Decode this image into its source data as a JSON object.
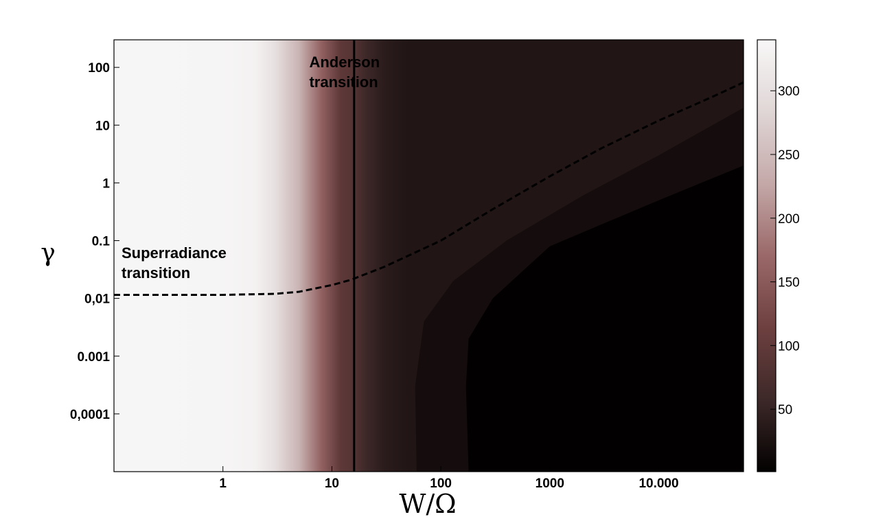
{
  "chart_data": {
    "type": "heatmap",
    "xlabel": "W/Ω",
    "ylabel": "γ",
    "x_scale": "log",
    "y_scale": "log",
    "xlim": [
      0.1,
      60000
    ],
    "ylim": [
      1e-05,
      300
    ],
    "x_ticks": [
      {
        "value": 1,
        "label": "1"
      },
      {
        "value": 10,
        "label": "10"
      },
      {
        "value": 100,
        "label": "100"
      },
      {
        "value": 1000,
        "label": "1000"
      },
      {
        "value": 10000,
        "label": "10.000"
      }
    ],
    "y_ticks": [
      {
        "value": 100,
        "label": "100"
      },
      {
        "value": 10,
        "label": "10"
      },
      {
        "value": 1,
        "label": "1"
      },
      {
        "value": 0.1,
        "label": "0.1"
      },
      {
        "value": 0.01,
        "label": "0,01"
      },
      {
        "value": 0.001,
        "label": "0.001"
      },
      {
        "value": 0.0001,
        "label": "0,0001"
      }
    ],
    "colorbar": {
      "range": [
        1,
        340
      ],
      "ticks": [
        {
          "value": 300,
          "label": "300"
        },
        {
          "value": 250,
          "label": "250"
        },
        {
          "value": 200,
          "label": "200"
        },
        {
          "value": 150,
          "label": "150"
        },
        {
          "value": 100,
          "label": "100"
        },
        {
          "value": 50,
          "label": "50"
        }
      ],
      "colors": [
        "#030101",
        "#3d2828",
        "#6e4040",
        "#9a6868",
        "#c4a8a8",
        "#e0d6d6",
        "#f8f7f7"
      ]
    },
    "columns_W": [
      0.1,
      1,
      2,
      3,
      5,
      8,
      12,
      16,
      20,
      30,
      50,
      100,
      200,
      500,
      1000,
      10000,
      60000
    ],
    "columns_value": [
      338,
      336,
      330,
      300,
      240,
      160,
      95,
      85,
      60,
      40,
      30,
      30,
      30,
      30,
      30,
      30,
      30
    ],
    "dark_region_boundary": [
      {
        "W": 60,
        "gamma": 1e-05
      },
      {
        "W": 58,
        "gamma": 0.0003
      },
      {
        "W": 70,
        "gamma": 0.004
      },
      {
        "W": 130,
        "gamma": 0.02
      },
      {
        "W": 400,
        "gamma": 0.1
      },
      {
        "W": 2000,
        "gamma": 0.6
      },
      {
        "W": 10000,
        "gamma": 3
      },
      {
        "W": 60000,
        "gamma": 20
      }
    ],
    "darkest_region_boundary": [
      {
        "W": 180,
        "gamma": 1e-05
      },
      {
        "W": 170,
        "gamma": 0.0003
      },
      {
        "W": 180,
        "gamma": 0.002
      },
      {
        "W": 300,
        "gamma": 0.01
      },
      {
        "W": 1000,
        "gamma": 0.08
      },
      {
        "W": 10000,
        "gamma": 0.5
      },
      {
        "W": 60000,
        "gamma": 2
      }
    ],
    "series": [
      {
        "style": "dashed",
        "points": [
          {
            "W": 0.1,
            "gamma": 0.0115
          },
          {
            "W": 1,
            "gamma": 0.0115
          },
          {
            "W": 3,
            "gamma": 0.012
          },
          {
            "W": 5,
            "gamma": 0.013
          },
          {
            "W": 10,
            "gamma": 0.017
          },
          {
            "W": 15,
            "gamma": 0.021
          },
          {
            "W": 30,
            "gamma": 0.035
          },
          {
            "W": 100,
            "gamma": 0.1
          },
          {
            "W": 300,
            "gamma": 0.35
          },
          {
            "W": 1000,
            "gamma": 1.3
          },
          {
            "W": 3000,
            "gamma": 4
          },
          {
            "W": 10000,
            "gamma": 12
          },
          {
            "W": 30000,
            "gamma": 30
          },
          {
            "W": 60000,
            "gamma": 55
          }
        ]
      },
      {
        "style": "solid",
        "vertical_at_W": 16
      }
    ],
    "annotations": [
      {
        "lines": [
          "Anderson",
          "transition"
        ],
        "W": 6.2,
        "gamma": 100
      },
      {
        "lines": [
          "Superradiance",
          "transition"
        ],
        "W": 0.1,
        "gamma": 0.05
      }
    ]
  }
}
